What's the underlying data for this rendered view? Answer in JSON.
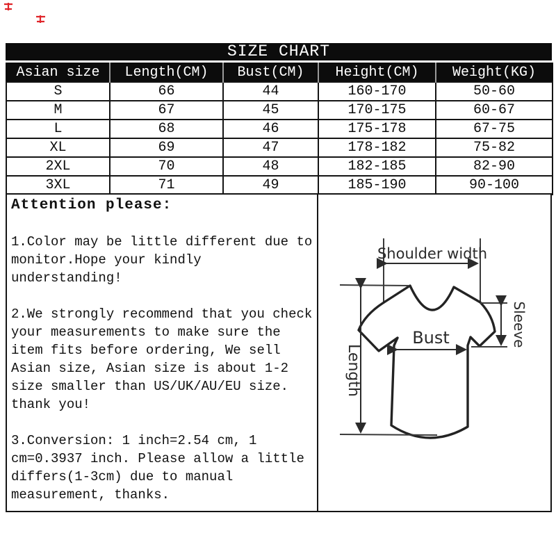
{
  "watermark": {
    "color": "#e0262b"
  },
  "size_chart": {
    "title": "SIZE CHART",
    "columns": [
      "Asian size",
      "Length(CM)",
      "Bust(CM)",
      "Height(CM)",
      "Weight(KG)"
    ],
    "rows": [
      [
        "S",
        "66",
        "44",
        "160-170",
        "50-60"
      ],
      [
        "M",
        "67",
        "45",
        "170-175",
        "60-67"
      ],
      [
        "L",
        "68",
        "46",
        "175-178",
        "67-75"
      ],
      [
        "XL",
        "69",
        "47",
        "178-182",
        "75-82"
      ],
      [
        "2XL",
        "70",
        "48",
        "182-185",
        "82-90"
      ],
      [
        "3XL",
        "71",
        "49",
        "185-190",
        "90-100"
      ]
    ]
  },
  "notes": {
    "heading": "Attention please:",
    "items": [
      "1.Color may be little different due to\nmonitor.Hope your kindly\nunderstanding!",
      "2.We strongly recommend that you check\nyour measurements to make sure the\nitem fits before ordering, We sell\nAsian size, Asian size is about 1-2\nsize smaller than US/UK/AU/EU size.\nthank you!",
      "3.Conversion: 1 inch=2.54 cm, 1\ncm=0.3937 inch. Please allow a little\ndiffers(1-3cm) due to manual\nmeasurement, thanks."
    ]
  },
  "diagram": {
    "shoulder_label": "Shoulder width",
    "bust_label": "Bust",
    "sleeve_label": "Sleeve",
    "length_label": "Length"
  }
}
